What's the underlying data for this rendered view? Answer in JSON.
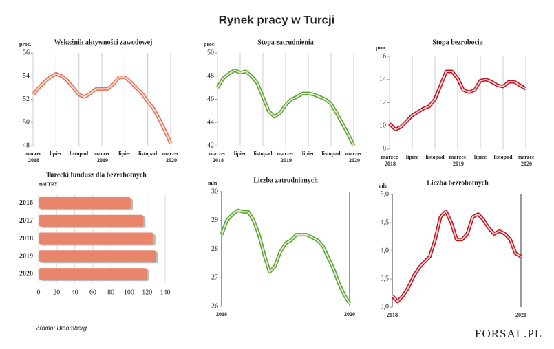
{
  "title": "Rynek pracy w Turcji",
  "source": "Źródło: Bloomberg",
  "logo": "FORSAL.PL",
  "chart_data": [
    {
      "type": "line",
      "title": "Wskaźnik aktywności zawodowej",
      "y_label": "proc.",
      "categories": [
        "marzec 2018",
        null,
        null,
        null,
        "lipiec",
        null,
        null,
        null,
        "listopad",
        null,
        null,
        null,
        "marzec 2019",
        null,
        null,
        null,
        "lipiec",
        null,
        null,
        null,
        "listopad",
        null,
        null,
        null,
        "marzec 2020"
      ],
      "color": "#e07050",
      "values": [
        52.4,
        53.0,
        53.5,
        53.9,
        54.2,
        54.0,
        53.6,
        53.0,
        52.4,
        52.2,
        52.5,
        52.9,
        52.9,
        52.9,
        53.3,
        53.9,
        53.9,
        53.5,
        53.0,
        52.5,
        51.8,
        51.2,
        50.3,
        49.3,
        48.2
      ],
      "ylim": [
        48,
        56
      ],
      "yticks": [
        48,
        50,
        52,
        54,
        56
      ]
    },
    {
      "type": "line",
      "title": "Stopa zatrudnienia",
      "y_label": "proc.",
      "categories": [
        "marzec 2018",
        null,
        null,
        null,
        "lipiec",
        null,
        null,
        null,
        "listopad",
        null,
        null,
        null,
        "marzec 2019",
        null,
        null,
        null,
        "lipiec",
        null,
        null,
        null,
        "listopad",
        null,
        null,
        null,
        "marzec 2020"
      ],
      "color": "#5aa02c",
      "values": [
        47.0,
        47.8,
        48.2,
        48.5,
        48.3,
        48.4,
        48.0,
        47.4,
        46.2,
        45.0,
        44.5,
        44.8,
        45.5,
        46.0,
        46.2,
        46.5,
        46.5,
        46.4,
        46.2,
        46.0,
        45.6,
        44.8,
        43.9,
        43.0,
        42.0
      ],
      "ylim": [
        42,
        50
      ],
      "yticks": [
        42,
        44,
        46,
        48,
        50
      ]
    },
    {
      "type": "line",
      "title": "Stopa bezrobocia",
      "y_label": "proc.",
      "categories": [
        "marzec 2018",
        null,
        null,
        null,
        "lipiec",
        null,
        null,
        null,
        "listopad",
        null,
        null,
        null,
        "marzec 2019",
        null,
        null,
        null,
        "lipiec",
        null,
        null,
        null,
        "listopad",
        null,
        null,
        null,
        "marzec 2020"
      ],
      "color": "#c0101a",
      "values": [
        10.2,
        9.7,
        9.9,
        10.4,
        10.9,
        11.2,
        11.5,
        11.7,
        12.3,
        13.5,
        14.7,
        14.7,
        14.1,
        13.1,
        12.9,
        13.1,
        13.9,
        14.0,
        13.8,
        13.5,
        13.4,
        13.8,
        13.8,
        13.5,
        13.2
      ],
      "ylim": [
        8,
        16
      ],
      "yticks": [
        8,
        10,
        12,
        14,
        16
      ]
    },
    {
      "type": "barh",
      "title": "Turecki fundusz dla bezrobotnych",
      "x_label": "mld TRY",
      "categories": [
        "2016",
        "2017",
        "2018",
        "2019",
        "2020"
      ],
      "values": [
        102,
        116,
        127,
        130,
        120
      ],
      "color": "#e8856a",
      "xlim": [
        0,
        140
      ],
      "xticks": [
        0,
        20,
        40,
        60,
        80,
        100,
        120,
        140
      ]
    },
    {
      "type": "line",
      "title": "Liczba zatrudnionych",
      "y_label": "mln",
      "categories": [
        "2018",
        null,
        null,
        null,
        null,
        null,
        null,
        null,
        null,
        null,
        null,
        null,
        null,
        null,
        null,
        null,
        null,
        null,
        null,
        null,
        null,
        null,
        null,
        null,
        "2020"
      ],
      "color": "#5aa02c",
      "values": [
        28.5,
        29.0,
        29.2,
        29.35,
        29.3,
        29.3,
        29.0,
        28.5,
        27.8,
        27.2,
        27.4,
        27.9,
        28.2,
        28.3,
        28.5,
        28.5,
        28.5,
        28.4,
        28.3,
        28.1,
        27.7,
        27.3,
        26.8,
        26.4,
        26.1
      ],
      "ylim": [
        26,
        30
      ],
      "yticks": [
        26,
        27,
        28,
        29,
        30
      ]
    },
    {
      "type": "line",
      "title": "Liczba bezrobotnych",
      "y_label": "mln",
      "categories": [
        "2018",
        null,
        null,
        null,
        null,
        null,
        null,
        null,
        null,
        null,
        null,
        null,
        null,
        null,
        null,
        null,
        null,
        null,
        null,
        null,
        null,
        null,
        null,
        null,
        "2020"
      ],
      "color": "#c0101a",
      "values": [
        3.2,
        3.1,
        3.2,
        3.35,
        3.55,
        3.7,
        3.8,
        3.9,
        4.2,
        4.6,
        4.7,
        4.5,
        4.2,
        4.2,
        4.3,
        4.6,
        4.65,
        4.55,
        4.4,
        4.3,
        4.35,
        4.3,
        4.2,
        3.95,
        3.9
      ],
      "ylim": [
        3.0,
        5.0
      ],
      "yticks": [
        {
          "value": 3.0,
          "label": "3,0"
        },
        {
          "value": 3.5,
          "label": "3,5"
        },
        {
          "value": 4.0,
          "label": "4,0"
        },
        {
          "value": 4.5,
          "label": "4,5"
        },
        {
          "value": 5.0,
          "label": "5,0"
        }
      ]
    }
  ]
}
